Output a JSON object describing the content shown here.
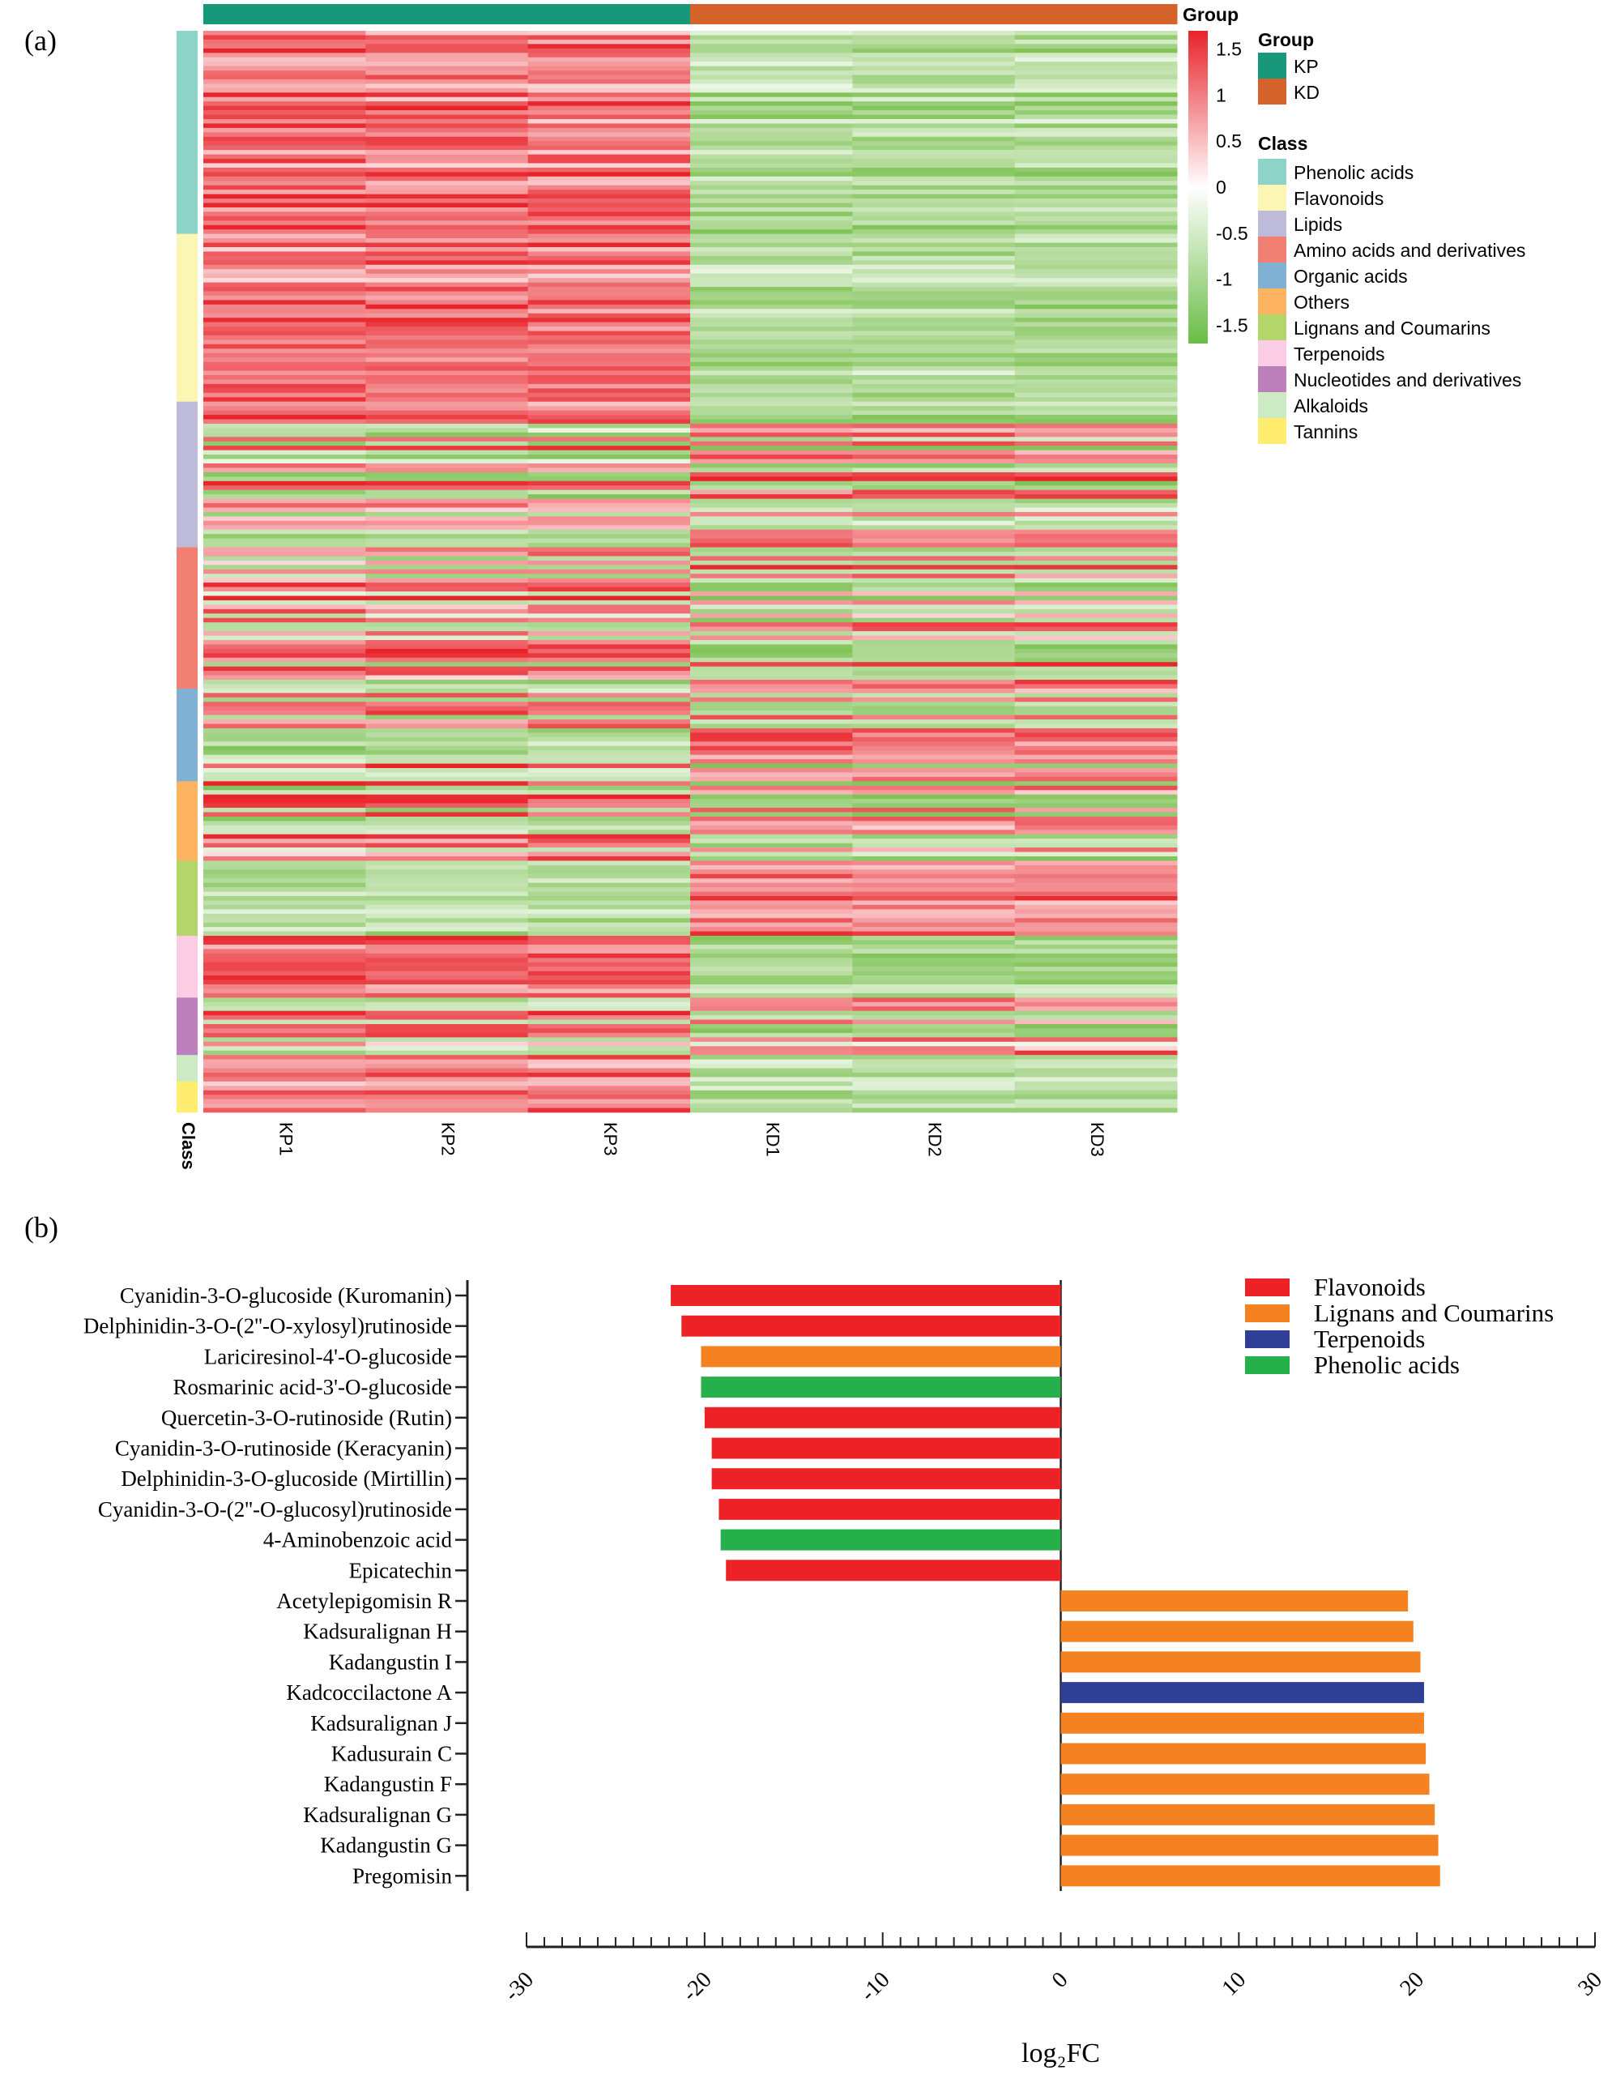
{
  "panel_a_label": "(a)",
  "panel_b_label": "(b)",
  "chart_data": [
    {
      "type": "heatmap",
      "title": "",
      "columns": [
        "KP1",
        "KP2",
        "KP3",
        "KD1",
        "KD2",
        "KD3"
      ],
      "column_groups": [
        "KP",
        "KP",
        "KP",
        "KD",
        "KD",
        "KD"
      ],
      "row_annotation_label": "Class",
      "group_annotation_label": "Group",
      "colorbar": {
        "ticks": [
          "1.5",
          "1",
          "0.5",
          "0",
          "-0.5",
          "-1",
          "-1.5"
        ],
        "range": [
          -1.7,
          1.7
        ],
        "colors": {
          "high": "#e8232a",
          "mid": "#ffffff",
          "low": "#6abd45"
        }
      },
      "group_legend": {
        "title": "Group",
        "items": [
          {
            "label": "KP",
            "color": "#17987a"
          },
          {
            "label": "KD",
            "color": "#d5622a"
          }
        ]
      },
      "class_legend": {
        "title": "Class",
        "items": [
          {
            "label": "Phenolic acids",
            "color": "#8dd3c7",
            "rows": 46,
            "pattern": "KP_up"
          },
          {
            "label": "Flavonoids",
            "color": "#fbf6b4",
            "rows": 38,
            "pattern": "KP_up"
          },
          {
            "label": "Lipids",
            "color": "#bebada",
            "rows": 33,
            "pattern": "mixed"
          },
          {
            "label": "Amino acids and derivatives",
            "color": "#f28072",
            "rows": 32,
            "pattern": "mixed"
          },
          {
            "label": "Organic acids",
            "color": "#80b1d3",
            "rows": 21,
            "pattern": "mixed"
          },
          {
            "label": "Others",
            "color": "#fdb462",
            "rows": 18,
            "pattern": "mixed"
          },
          {
            "label": "Lignans and Coumarins",
            "color": "#b3d56a",
            "rows": 17,
            "pattern": "KD_up"
          },
          {
            "label": "Terpenoids",
            "color": "#fbcde5",
            "rows": 14,
            "pattern": "KP_up"
          },
          {
            "label": "Nucleotides and derivatives",
            "color": "#bc80bd",
            "rows": 13,
            "pattern": "mixed"
          },
          {
            "label": "Alkaloids",
            "color": "#ccebc5",
            "rows": 6,
            "pattern": "KP_up"
          },
          {
            "label": "Tannins",
            "color": "#ffed6f",
            "rows": 7,
            "pattern": "KP_up"
          }
        ]
      }
    },
    {
      "type": "bar",
      "orientation": "horizontal",
      "xlabel": "log₂FC",
      "xlim": [
        -30,
        30
      ],
      "xticks": [
        "-30",
        "-20",
        "-10",
        "0",
        "10",
        "20",
        "30"
      ],
      "legend": {
        "placement": "top-right",
        "items": [
          {
            "label": "Flavonoids",
            "color": "#ec2227"
          },
          {
            "label": "Lignans and Coumarins",
            "color": "#f58220"
          },
          {
            "label": "Terpenoids",
            "color": "#2e3f95"
          },
          {
            "label": "Phenolic acids",
            "color": "#25b04b"
          }
        ]
      },
      "bars": [
        {
          "label": "Cyanidin-3-O-glucoside (Kuromanin)",
          "value": -21.9,
          "class": 0
        },
        {
          "label": "Delphinidin-3-O-(2''-O-xylosyl)rutinoside",
          "value": -21.3,
          "class": 0
        },
        {
          "label": "Lariciresinol-4'-O-glucoside",
          "value": -20.2,
          "class": 1
        },
        {
          "label": "Rosmarinic acid-3'-O-glucoside",
          "value": -20.2,
          "class": 3
        },
        {
          "label": "Quercetin-3-O-rutinoside (Rutin)",
          "value": -20.0,
          "class": 0
        },
        {
          "label": "Cyanidin-3-O-rutinoside (Keracyanin)",
          "value": -19.6,
          "class": 0
        },
        {
          "label": "Delphinidin-3-O-glucoside (Mirtillin)",
          "value": -19.6,
          "class": 0
        },
        {
          "label": "Cyanidin-3-O-(2''-O-glucosyl)rutinoside",
          "value": -19.2,
          "class": 0
        },
        {
          "label": "4-Aminobenzoic acid",
          "value": -19.1,
          "class": 3
        },
        {
          "label": "Epicatechin",
          "value": -18.8,
          "class": 0
        },
        {
          "label": "Acetylepigomisin R",
          "value": 19.5,
          "class": 1
        },
        {
          "label": "Kadsuralignan H",
          "value": 19.8,
          "class": 1
        },
        {
          "label": "Kadangustin I",
          "value": 20.2,
          "class": 1
        },
        {
          "label": "Kadcoccilactone A",
          "value": 20.4,
          "class": 2
        },
        {
          "label": "Kadsuralignan J",
          "value": 20.4,
          "class": 1
        },
        {
          "label": "Kadusurain C",
          "value": 20.5,
          "class": 1
        },
        {
          "label": "Kadangustin F",
          "value": 20.7,
          "class": 1
        },
        {
          "label": "Kadsuralignan G",
          "value": 21.0,
          "class": 1
        },
        {
          "label": "Kadangustin G",
          "value": 21.2,
          "class": 1
        },
        {
          "label": "Pregomisin",
          "value": 21.3,
          "class": 1
        }
      ]
    }
  ]
}
